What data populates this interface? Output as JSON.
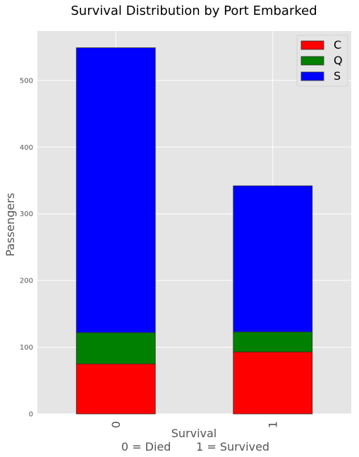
{
  "chart_data": {
    "type": "bar",
    "stacked": true,
    "title": "Survival Distribution by Port Embarked",
    "xlabel": "Survival",
    "xlabel_line2": "0 = Died       1 = Survived",
    "ylabel": "Passengers",
    "categories": [
      "0",
      "1"
    ],
    "series": [
      {
        "name": "C",
        "values": [
          75,
          93
        ],
        "color": "#ff0000"
      },
      {
        "name": "Q",
        "values": [
          47,
          30
        ],
        "color": "#008000"
      },
      {
        "name": "S",
        "values": [
          427,
          219
        ],
        "color": "#0000ff"
      }
    ],
    "ylim": [
      0,
      574
    ],
    "yticks": [
      0,
      100,
      200,
      300,
      400,
      500
    ],
    "grid": true,
    "legend_position": "top-right",
    "plot_background": "#e5e5e5",
    "grid_color": "#ffffff"
  }
}
